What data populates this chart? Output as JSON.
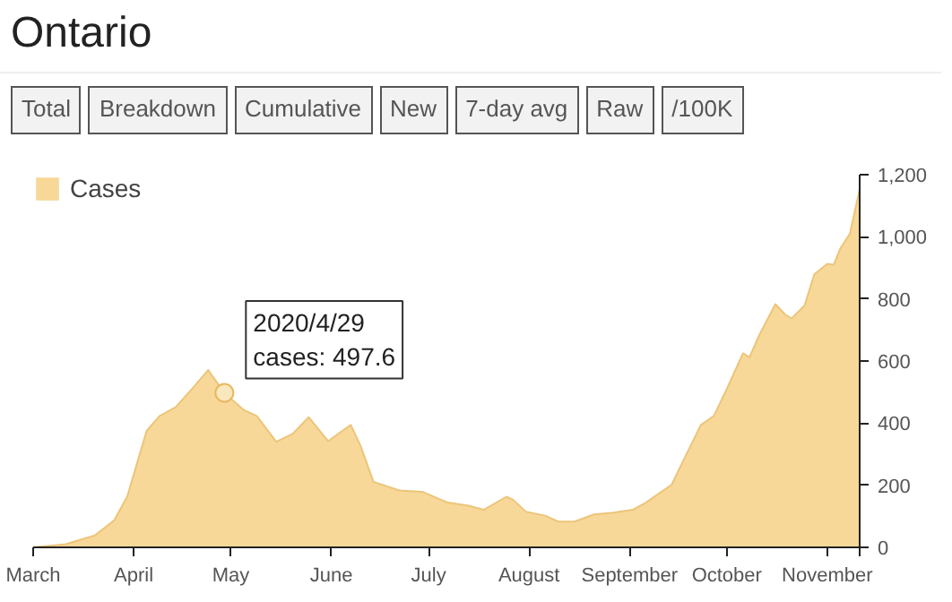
{
  "chart_data": {
    "type": "area",
    "title": "Ontario",
    "annotations": [
      "Total",
      "Breakdown",
      "Cumulative",
      "New",
      "7-day avg",
      "Raw",
      "/100K",
      {
        "text": "2020/4/29\ncases: 497.6",
        "x": "2020-04-29",
        "y": 497.6
      }
    ],
    "x": [
      "2020-03-01",
      "2020-03-11",
      "2020-03-20",
      "2020-03-26",
      "2020-03-30",
      "2020-04-05",
      "2020-04-09",
      "2020-04-14",
      "2020-04-19",
      "2020-04-24",
      "2020-04-29",
      "2020-05-05",
      "2020-05-09",
      "2020-05-15",
      "2020-05-20",
      "2020-05-25",
      "2020-05-31",
      "2020-06-03",
      "2020-06-07",
      "2020-06-10",
      "2020-06-14",
      "2020-06-22",
      "2020-06-29",
      "2020-07-07",
      "2020-07-13",
      "2020-07-18",
      "2020-07-25",
      "2020-07-27",
      "2020-07-31",
      "2020-08-06",
      "2020-08-10",
      "2020-08-15",
      "2020-08-21",
      "2020-08-27",
      "2020-09-02",
      "2020-09-06",
      "2020-09-14",
      "2020-09-18",
      "2020-09-23",
      "2020-09-27",
      "2020-10-01",
      "2020-10-06",
      "2020-10-08",
      "2020-10-11",
      "2020-10-16",
      "2020-10-19",
      "2020-10-21",
      "2020-10-25",
      "2020-10-28",
      "2020-11-01",
      "2020-11-03",
      "2020-11-05",
      "2020-11-08",
      "2020-11-11"
    ],
    "series": [
      {
        "name": "Cases",
        "color": "#f7d898",
        "values": [
          0,
          10,
          38,
          87,
          163,
          375,
          423,
          452,
          510,
          571,
          497.6,
          442,
          423,
          340,
          365,
          419,
          342,
          365,
          394,
          327,
          211,
          183,
          179,
          144,
          135,
          121,
          163,
          154,
          115,
          102,
          83,
          83,
          106,
          112,
          121,
          144,
          202,
          288,
          394,
          423,
          510,
          625,
          612,
          683,
          783,
          750,
          737,
          779,
          879,
          913,
          910,
          962,
          1010,
          1154
        ]
      }
    ],
    "xlim": [
      "2020-03-01",
      "2020-11-11"
    ],
    "xticks": [
      {
        "value": "2020-03-01",
        "label": "March"
      },
      {
        "value": "2020-04-01",
        "label": "April"
      },
      {
        "value": "2020-05-01",
        "label": "May"
      },
      {
        "value": "2020-06-01",
        "label": "June"
      },
      {
        "value": "2020-07-01",
        "label": "July"
      },
      {
        "value": "2020-08-01",
        "label": "August"
      },
      {
        "value": "2020-09-01",
        "label": "September"
      },
      {
        "value": "2020-10-01",
        "label": "October"
      },
      {
        "value": "2020-11-01",
        "label": "November"
      },
      {
        "value": "2020-11-11",
        "label": null
      }
    ],
    "ylim": [
      0,
      1200
    ],
    "yticks": [
      0,
      200,
      400,
      600,
      800,
      {
        "value": 1000,
        "label": "1,000"
      },
      {
        "value": 1200,
        "label": "1,200"
      }
    ],
    "legend": "top left",
    "grid": false
  }
}
